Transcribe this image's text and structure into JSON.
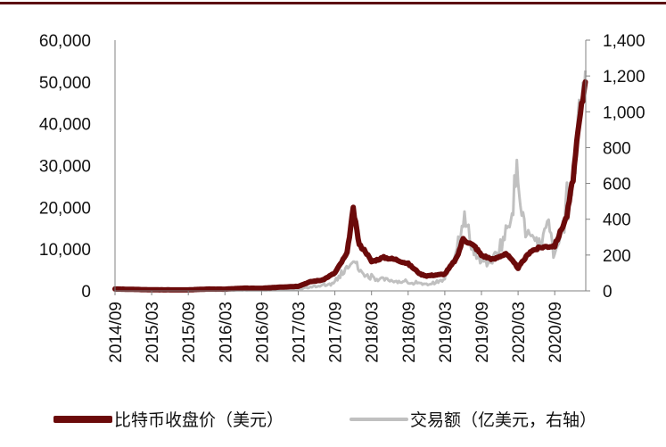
{
  "chart_data": {
    "type": "line",
    "title": "",
    "xlabel": "",
    "ylabel_left": "",
    "ylabel_right": "",
    "categories": [
      "2014/09",
      "2015/03",
      "2015/09",
      "2016/03",
      "2016/09",
      "2017/03",
      "2017/09",
      "2018/03",
      "2018/09",
      "2019/03",
      "2019/09",
      "2020/03",
      "2020/09"
    ],
    "x_tick_labels": [
      "2014/09",
      "2015/03",
      "2015/09",
      "2016/03",
      "2016/09",
      "2017/03",
      "2017/09",
      "2018/03",
      "2018/09",
      "2019/03",
      "2019/09",
      "2020/03",
      "2020/09"
    ],
    "left_axis": {
      "min": 0,
      "max": 60000,
      "step": 10000,
      "tick_labels": [
        "0",
        "10,000",
        "20,000",
        "30,000",
        "40,000",
        "50,000",
        "60,000"
      ]
    },
    "right_axis": {
      "min": 0,
      "max": 1400,
      "step": 200,
      "tick_labels": [
        "0",
        "200",
        "400",
        "600",
        "800",
        "1,000",
        "1,200",
        "1,400"
      ]
    },
    "grid": false,
    "legend_position": "bottom",
    "series": [
      {
        "name": "比特币收盘价（美元）",
        "axis": "left",
        "color": "#6b0a0a",
        "points": [
          [
            "2014/09",
            450
          ],
          [
            "2014/12",
            350
          ],
          [
            "2015/03",
            260
          ],
          [
            "2015/06",
            240
          ],
          [
            "2015/09",
            235
          ],
          [
            "2015/12",
            430
          ],
          [
            "2016/03",
            415
          ],
          [
            "2016/06",
            650
          ],
          [
            "2016/09",
            610
          ],
          [
            "2016/12",
            900
          ],
          [
            "2017/03",
            1100
          ],
          [
            "2017/05",
            2200
          ],
          [
            "2017/07",
            2600
          ],
          [
            "2017/09",
            4300
          ],
          [
            "2017/11",
            9000
          ],
          [
            "2017/12",
            19500
          ],
          [
            "2018/01",
            11000
          ],
          [
            "2018/02",
            9500
          ],
          [
            "2018/03",
            7000
          ],
          [
            "2018/05",
            8000
          ],
          [
            "2018/07",
            7500
          ],
          [
            "2018/09",
            6500
          ],
          [
            "2018/11",
            4000
          ],
          [
            "2018/12",
            3600
          ],
          [
            "2019/03",
            4000
          ],
          [
            "2019/05",
            8000
          ],
          [
            "2019/06",
            12500
          ],
          [
            "2019/08",
            10500
          ],
          [
            "2019/09",
            8500
          ],
          [
            "2019/11",
            7500
          ],
          [
            "2020/01",
            9000
          ],
          [
            "2020/03",
            5500
          ],
          [
            "2020/05",
            9500
          ],
          [
            "2020/07",
            10500
          ],
          [
            "2020/09",
            10800
          ],
          [
            "2020/11",
            18000
          ],
          [
            "2020/12",
            27000
          ],
          [
            "2021/01",
            40000
          ],
          [
            "2021/02",
            50000
          ]
        ]
      },
      {
        "name": "交易额（亿美元，右轴）",
        "axis": "right",
        "color": "#c0c0c0",
        "points": [
          [
            "2014/09",
            2
          ],
          [
            "2015/03",
            2
          ],
          [
            "2015/09",
            2
          ],
          [
            "2016/03",
            3
          ],
          [
            "2016/09",
            4
          ],
          [
            "2017/03",
            10
          ],
          [
            "2017/09",
            40
          ],
          [
            "2017/12",
            190
          ],
          [
            "2018/01",
            110
          ],
          [
            "2018/03",
            70
          ],
          [
            "2018/06",
            60
          ],
          [
            "2018/09",
            45
          ],
          [
            "2018/12",
            35
          ],
          [
            "2019/03",
            60
          ],
          [
            "2019/05",
            250
          ],
          [
            "2019/06",
            420
          ],
          [
            "2019/08",
            200
          ],
          [
            "2019/09",
            150
          ],
          [
            "2019/11",
            180
          ],
          [
            "2020/01",
            320
          ],
          [
            "2020/02",
            470
          ],
          [
            "2020/03",
            690
          ],
          [
            "2020/04",
            350
          ],
          [
            "2020/06",
            230
          ],
          [
            "2020/08",
            360
          ],
          [
            "2020/09",
            180
          ],
          [
            "2020/11",
            450
          ],
          [
            "2020/12",
            600
          ],
          [
            "2021/01",
            1050
          ],
          [
            "2021/02",
            1230
          ]
        ]
      }
    ]
  },
  "legend": {
    "items": [
      {
        "label": "比特币收盘价（美元）",
        "color": "#6b0a0a"
      },
      {
        "label": "交易额（亿美元，右轴）",
        "color": "#c0c0c0"
      }
    ]
  },
  "colors": {
    "accent_rule": "#5c0f12",
    "axis": "#808080"
  }
}
